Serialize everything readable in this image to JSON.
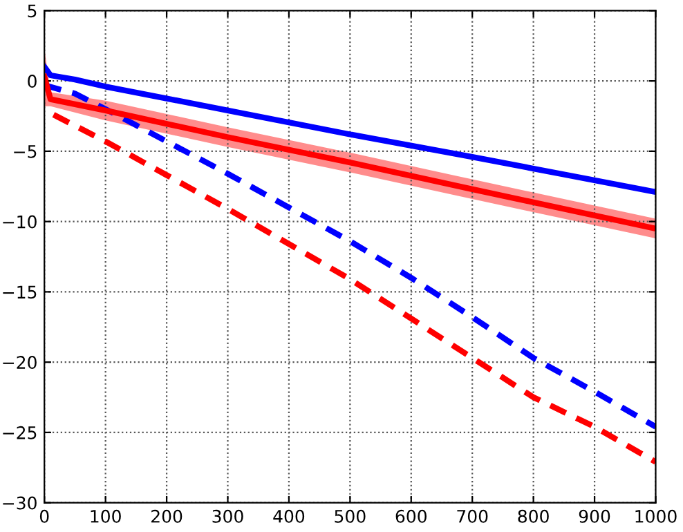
{
  "chart_data": {
    "type": "line",
    "xlim": [
      0,
      1000
    ],
    "ylim": [
      -30,
      5
    ],
    "xticks": [
      0,
      100,
      200,
      300,
      400,
      500,
      600,
      700,
      800,
      900,
      1000
    ],
    "yticks": [
      {
        "value": -30,
        "label": "−30"
      },
      {
        "value": -25,
        "label": "−25"
      },
      {
        "value": -20,
        "label": "−20"
      },
      {
        "value": -15,
        "label": "−15"
      },
      {
        "value": -10,
        "label": "−10"
      },
      {
        "value": -5,
        "label": "−5"
      },
      0,
      5
    ],
    "grid": true,
    "legend": false,
    "series": [
      {
        "color": "#0000ff",
        "line_style": "solid",
        "x": [
          0,
          10,
          50,
          100,
          300,
          500,
          700,
          1000
        ],
        "values": [
          1.0,
          0.4,
          0.1,
          -0.4,
          -2.1,
          -3.8,
          -5.4,
          -7.9
        ]
      },
      {
        "color": "#0000ff",
        "line_style": "dashed",
        "x": [
          0,
          50,
          100,
          200,
          300,
          400,
          500,
          600,
          700,
          800,
          900,
          1000
        ],
        "values": [
          -0.3,
          -0.9,
          -2.0,
          -4.3,
          -6.6,
          -9.0,
          -11.4,
          -14.0,
          -16.8,
          -19.7,
          -22.1,
          -24.6
        ]
      },
      {
        "color": "#ff0000",
        "line_style": "solid",
        "x": [
          0,
          10,
          100,
          300,
          500,
          700,
          1000
        ],
        "values": [
          0.3,
          -1.3,
          -2.1,
          -4.0,
          -5.8,
          -7.7,
          -10.5
        ],
        "lower": [
          -1.8,
          -1.8,
          -2.8,
          -4.7,
          -6.5,
          -8.4,
          -11.2
        ],
        "upper": [
          2.3,
          -0.8,
          -1.4,
          -3.3,
          -5.1,
          -7.0,
          -9.8
        ]
      },
      {
        "color": "#ff0000",
        "line_style": "dashed",
        "x": [
          15,
          100,
          200,
          300,
          400,
          500,
          600,
          700,
          800,
          900,
          1000
        ],
        "values": [
          -2.4,
          -4.3,
          -6.7,
          -9.1,
          -11.6,
          -14.1,
          -16.9,
          -19.7,
          -22.5,
          -24.6,
          -27.1
        ]
      }
    ]
  }
}
